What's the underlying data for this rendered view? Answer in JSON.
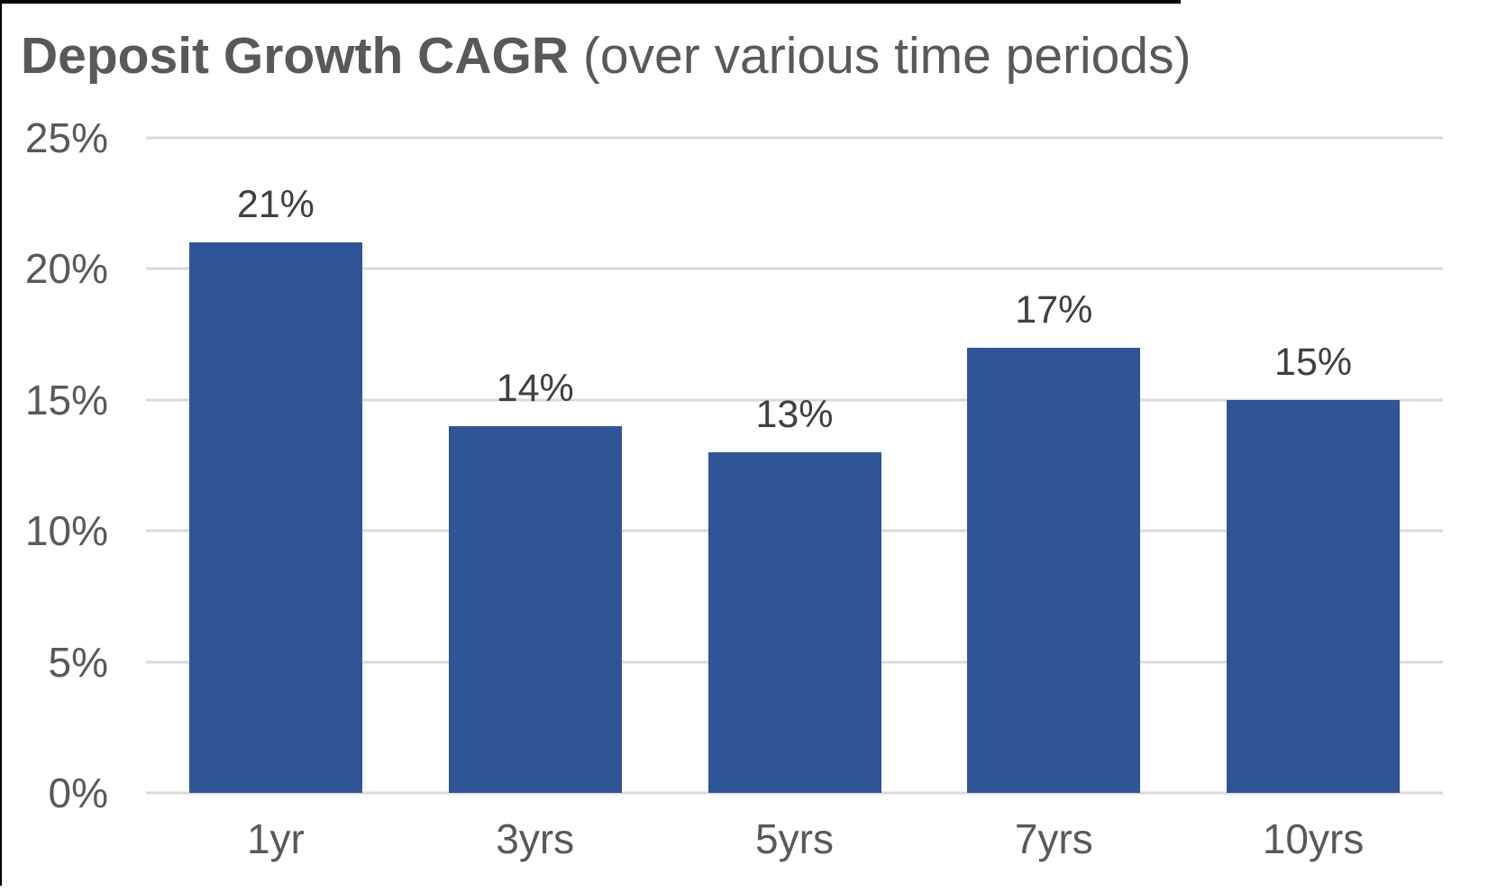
{
  "title": {
    "main": "Deposit Growth CAGR",
    "sub": " (over various time periods)"
  },
  "chart_data": {
    "type": "bar",
    "title": "Deposit Growth CAGR (over various time periods)",
    "categories": [
      "1yr",
      "3yrs",
      "5yrs",
      "7yrs",
      "10yrs"
    ],
    "values": [
      21,
      14,
      13,
      17,
      15
    ],
    "data_labels": [
      "21%",
      "14%",
      "13%",
      "17%",
      "15%"
    ],
    "xlabel": "",
    "ylabel": "",
    "ylim": [
      0,
      25
    ],
    "yticks": [
      {
        "value": 25,
        "label": "25%"
      },
      {
        "value": 20,
        "label": "20%"
      },
      {
        "value": 15,
        "label": "15%"
      },
      {
        "value": 10,
        "label": "10%"
      },
      {
        "value": 5,
        "label": "5%"
      },
      {
        "value": 0,
        "label": "0%"
      }
    ],
    "grid": true,
    "legend": false,
    "colors": {
      "bar": "#2F5596",
      "gridline": "#D9D9D9",
      "axis_text": "#595959",
      "data_label": "#404040",
      "title_text": "#595959"
    }
  }
}
